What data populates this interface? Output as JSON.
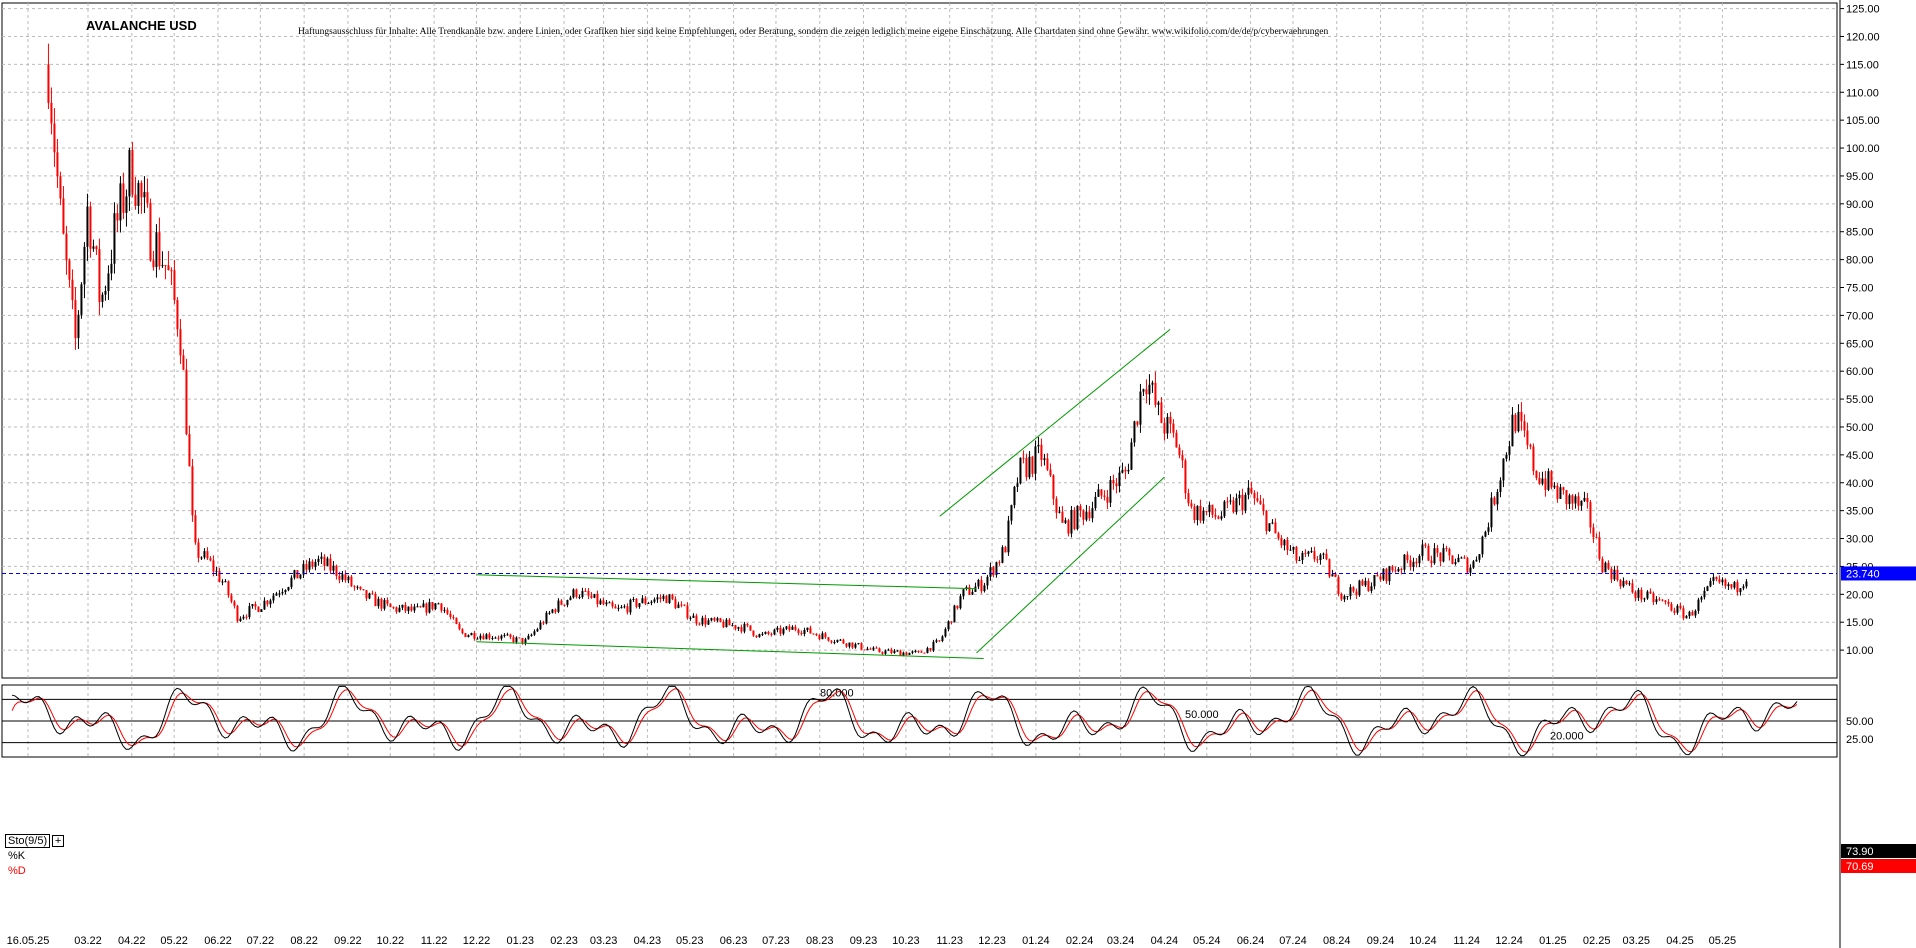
{
  "title": "AVALANCHE USD",
  "disclaimer": "Haftungsausschluss für Inhalte: Alle Trendkanäle bzw. andere Linien, oder Grafiken hier sind keine Empfehlungen, oder Beratung, sondern die zeigen lediglich meine eigene Einschätzung. Alle Chartdaten sind ohne Gewähr.  www.wikifolio.com/de/de/p/cyberwaehrungen",
  "colors": {
    "up": "#000000",
    "down": "#ff0000",
    "trendline": "#009900",
    "price_line": "#0000ff",
    "grid": "#bbbbbb"
  },
  "chart_data": [
    {
      "type": "candlestick",
      "title": "AVALANCHE USD",
      "ylim": [
        5,
        126
      ],
      "y_axis_position": "right",
      "grid": true,
      "y_ticks": [
        "125.00",
        "120.00",
        "115.00",
        "110.00",
        "105.00",
        "100.00",
        "95.00",
        "90.00",
        "85.00",
        "80.00",
        "75.00",
        "70.00",
        "65.00",
        "60.00",
        "55.00",
        "50.00",
        "45.00",
        "40.00",
        "35.00",
        "30.00",
        "25.00",
        "20.00",
        "15.00",
        "10.00"
      ],
      "x_ticks": [
        "16.05.25",
        "03.22",
        "04.22",
        "05.22",
        "06.22",
        "07.22",
        "08.22",
        "09.22",
        "10.22",
        "11.22",
        "12.22",
        "01.23",
        "02.23",
        "03.23",
        "04.23",
        "05.23",
        "06.23",
        "07.23",
        "08.23",
        "09.23",
        "10.23",
        "11.23",
        "12.23",
        "01.24",
        "02.24",
        "03.24",
        "04.24",
        "05.24",
        "06.24",
        "07.24",
        "08.24",
        "09.24",
        "10.24",
        "11.24",
        "12.24",
        "01.25",
        "02.25",
        "03.25",
        "04.25",
        "05.25"
      ],
      "price_path": [
        [
          "2022-02",
          115
        ],
        [
          "2022-02-10",
          86
        ],
        [
          "2022-02-20",
          65
        ],
        [
          "2022-03-01",
          90
        ],
        [
          "2022-03-10",
          72
        ],
        [
          "2022-03-20",
          85
        ],
        [
          "2022-04-01",
          97
        ],
        [
          "2022-04-12",
          86
        ],
        [
          "2022-04-25",
          79
        ],
        [
          "2022-05-05",
          68
        ],
        [
          "2022-05-10",
          50
        ],
        [
          "2022-05-15",
          28
        ],
        [
          "2022-05-25",
          26
        ],
        [
          "2022-06-05",
          22
        ],
        [
          "2022-06-15",
          16
        ],
        [
          "2022-07-01",
          18
        ],
        [
          "2022-07-20",
          22
        ],
        [
          "2022-08-10",
          26
        ],
        [
          "2022-08-25",
          24
        ],
        [
          "2022-09-10",
          20
        ],
        [
          "2022-10-01",
          17.5
        ],
        [
          "2022-10-20",
          17
        ],
        [
          "2022-11-05",
          18.5
        ],
        [
          "2022-11-20",
          13
        ],
        [
          "2022-12-15",
          12.5
        ],
        [
          "2023-01-05",
          11.5
        ],
        [
          "2023-01-25",
          17.5
        ],
        [
          "2023-02-10",
          20.5
        ],
        [
          "2023-03-10",
          17
        ],
        [
          "2023-03-25",
          18.5
        ],
        [
          "2023-04-15",
          19.5
        ],
        [
          "2023-05-05",
          15.5
        ],
        [
          "2023-06-10",
          14
        ],
        [
          "2023-06-20",
          12.5
        ],
        [
          "2023-07-15",
          14
        ],
        [
          "2023-08-10",
          12
        ],
        [
          "2023-09-10",
          9.8
        ],
        [
          "2023-10-10",
          9.4
        ],
        [
          "2023-10-25",
          11.5
        ],
        [
          "2023-11-10",
          20
        ],
        [
          "2023-11-25",
          22
        ],
        [
          "2023-12-10",
          28
        ],
        [
          "2023-12-20",
          42
        ],
        [
          "2024-01-05",
          45
        ],
        [
          "2024-01-20",
          32
        ],
        [
          "2024-02-10",
          36
        ],
        [
          "2024-03-05",
          42
        ],
        [
          "2024-03-18",
          60
        ],
        [
          "2024-03-28",
          52
        ],
        [
          "2024-04-10",
          47
        ],
        [
          "2024-04-20",
          35
        ],
        [
          "2024-05-10",
          34
        ],
        [
          "2024-06-01",
          38
        ],
        [
          "2024-06-20",
          30
        ],
        [
          "2024-07-05",
          26
        ],
        [
          "2024-07-20",
          27
        ],
        [
          "2024-08-05",
          20
        ],
        [
          "2024-08-25",
          22
        ],
        [
          "2024-09-10",
          24.5
        ],
        [
          "2024-10-01",
          27.5
        ],
        [
          "2024-10-20",
          26.5
        ],
        [
          "2024-11-05",
          25
        ],
        [
          "2024-11-15",
          32
        ],
        [
          "2024-12-05",
          52
        ],
        [
          "2024-12-20",
          42
        ],
        [
          "2025-01-05",
          38
        ],
        [
          "2025-01-25",
          35
        ],
        [
          "2025-02-05",
          25.5
        ],
        [
          "2025-03-01",
          20
        ],
        [
          "2025-03-20",
          18.5
        ],
        [
          "2025-04-07",
          16
        ],
        [
          "2025-04-25",
          22
        ],
        [
          "2025-05-10",
          21
        ],
        [
          "2025-05-20",
          24
        ]
      ],
      "last_price": 23.74,
      "last_price_label": "23.740",
      "trendlines": [
        {
          "from": [
            "2022-12-01",
            23.5
          ],
          "to": [
            "2023-11-20",
            21
          ]
        },
        {
          "from": [
            "2022-12-01",
            11.5
          ],
          "to": [
            "2023-11-25",
            8.5
          ]
        },
        {
          "from": [
            "2023-10-25",
            34
          ],
          "to": [
            "2024-04-05",
            67.5
          ]
        },
        {
          "from": [
            "2023-11-20",
            9.5
          ],
          "to": [
            "2024-04-01",
            41
          ]
        }
      ]
    },
    {
      "type": "line",
      "title": "Sto(9/5)",
      "ylim": [
        0,
        100
      ],
      "y_ticks": [
        "50.00",
        "25.00"
      ],
      "levels": [
        {
          "value": 80,
          "label": "80.000"
        },
        {
          "value": 50,
          "label": "50.000"
        },
        {
          "value": 20,
          "label": "20.000"
        }
      ],
      "series": [
        {
          "name": "%K",
          "color": "#000000",
          "last": 73.9,
          "last_label": "73.90"
        },
        {
          "name": "%D",
          "color": "#ff0000",
          "last": 70.69,
          "last_label": "70.69"
        }
      ]
    }
  ]
}
